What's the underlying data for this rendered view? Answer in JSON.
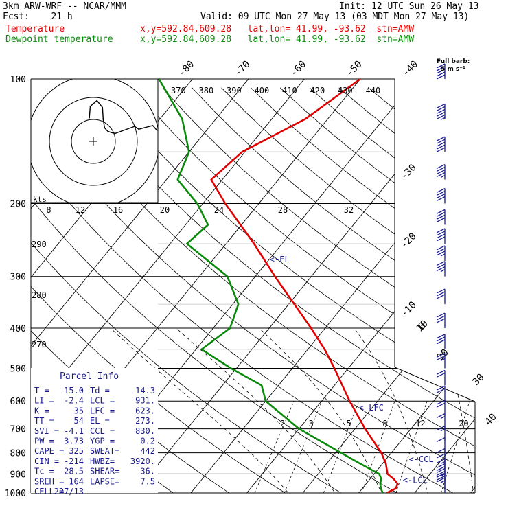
{
  "header": {
    "model": "3km ARW-WRF -- NCAR/MMM",
    "init": "Init: 12 UTC Sun 26 May 13",
    "fcst": "Fcst:    21 h",
    "valid": "Valid: 09 UTC Mon 27 May 13 (03 MDT Mon 27 May 13)",
    "temp_label": "Temperature",
    "temp_info": "x,y=592.84,609.28   lat,lon= 41.99, -93.62  stn=AMW",
    "dew_label": "Dewpoint temperature",
    "dew_info": "x,y=592.84,609.28   lat,lon= 41.99, -93.62  stn=AMW"
  },
  "barb_legend": {
    "title": "Full barb:",
    "value": "5 m s⁻¹"
  },
  "hodograph": {
    "units": "kts",
    "speed_ticks": [
      "8",
      "12",
      "16",
      "20",
      "24",
      "28",
      "32"
    ]
  },
  "parcel_info": {
    "title": "Parcel Info",
    "rows": [
      [
        "T  =",
        "15.0",
        "Td  =",
        "14.3"
      ],
      [
        "LI =",
        "-2.4",
        "LCL =",
        "931."
      ],
      [
        "K  =",
        "35",
        "LFC =",
        "623."
      ],
      [
        "TT =",
        "54",
        "EL  =",
        "273."
      ],
      [
        "SVI =",
        "-4.1",
        "CCL =",
        "830."
      ],
      [
        "PW =",
        "3.73",
        "YGP =",
        "0.2"
      ],
      [
        "CAPE =",
        "325",
        "SWEAT=",
        "442"
      ],
      [
        "CIN =",
        "-214",
        "HWBZ=",
        "3920."
      ],
      [
        "Tc =",
        "28.5",
        "SHEAR=",
        "36."
      ],
      [
        "SREH =",
        "164",
        "LAPSE=",
        "7.5"
      ],
      [
        "CELL =",
        "227/13",
        "",
        ""
      ]
    ]
  },
  "markers": {
    "el": "<-EL",
    "lfc": "<-LFC",
    "ccl": "<-CCL",
    "lcl": "<-LCL"
  },
  "colors": {
    "temperature": "#e00000",
    "dewpoint": "#0a8a0a",
    "text": "#1a1a8c"
  },
  "chart_data": {
    "type": "line",
    "pressure_levels": [
      "100",
      "200",
      "300",
      "400",
      "500",
      "600",
      "700",
      "800",
      "900",
      "1000"
    ],
    "temp_top_labels": [
      "-80",
      "-70",
      "-60",
      "-50",
      "-40"
    ],
    "temp_right_labels": [
      "-30",
      "-20",
      "-10",
      "0",
      "10",
      "20",
      "30",
      "40"
    ],
    "theta_labels": [
      "370",
      "380",
      "390",
      "400",
      "410",
      "420",
      "430",
      "440"
    ],
    "theta_left_labels": [
      "290",
      "280",
      "270"
    ],
    "mixing_ratio_labels": [
      "2",
      "3",
      "5",
      "8",
      "12",
      "20"
    ],
    "series": [
      {
        "name": "Temperature",
        "p": [
          1000,
          975,
          950,
          925,
          900,
          850,
          800,
          700,
          600,
          500,
          450,
          400,
          350,
          300,
          250,
          200,
          175,
          150,
          125,
          100
        ],
        "t": [
          15.0,
          16.0,
          15.6,
          14.2,
          12.4,
          10.6,
          8.2,
          1.8,
          -5.0,
          -12.5,
          -17.0,
          -22.5,
          -29.0,
          -36.5,
          -45.0,
          -56.0,
          -62.0,
          -60.5,
          -54.0,
          -50.0
        ]
      },
      {
        "name": "Dewpoint temperature",
        "p": [
          1000,
          975,
          950,
          925,
          900,
          850,
          800,
          700,
          600,
          550,
          500,
          450,
          400,
          350,
          300,
          250,
          225,
          200,
          175,
          150,
          125,
          100
        ],
        "t": [
          14.3,
          13.3,
          12.5,
          12.0,
          10.9,
          6.0,
          1.0,
          -10.0,
          -20.0,
          -23.0,
          -31.0,
          -39.0,
          -37.0,
          -39.0,
          -45.0,
          -57.0,
          -56.0,
          -61.0,
          -68.0,
          -70.0,
          -76.0,
          -86.0
        ]
      }
    ],
    "wind_barbs": {
      "p": [
        1000,
        975,
        950,
        925,
        900,
        875,
        850,
        800,
        750,
        700,
        650,
        600,
        550,
        500,
        450,
        400,
        350,
        300,
        275,
        250,
        225,
        200,
        175,
        150,
        125,
        100
      ],
      "dir_deg": [
        170,
        175,
        185,
        195,
        205,
        220,
        235,
        245,
        250,
        250,
        250,
        250,
        250,
        250,
        250,
        255,
        255,
        255,
        255,
        255,
        255,
        260,
        260,
        260,
        260,
        265
      ],
      "speed_ms": [
        8,
        12,
        14,
        12,
        8,
        6,
        6,
        7,
        8,
        9,
        10,
        11,
        12,
        13,
        15,
        16,
        17,
        18,
        19,
        20,
        21,
        22,
        24,
        26,
        28,
        27
      ]
    }
  }
}
